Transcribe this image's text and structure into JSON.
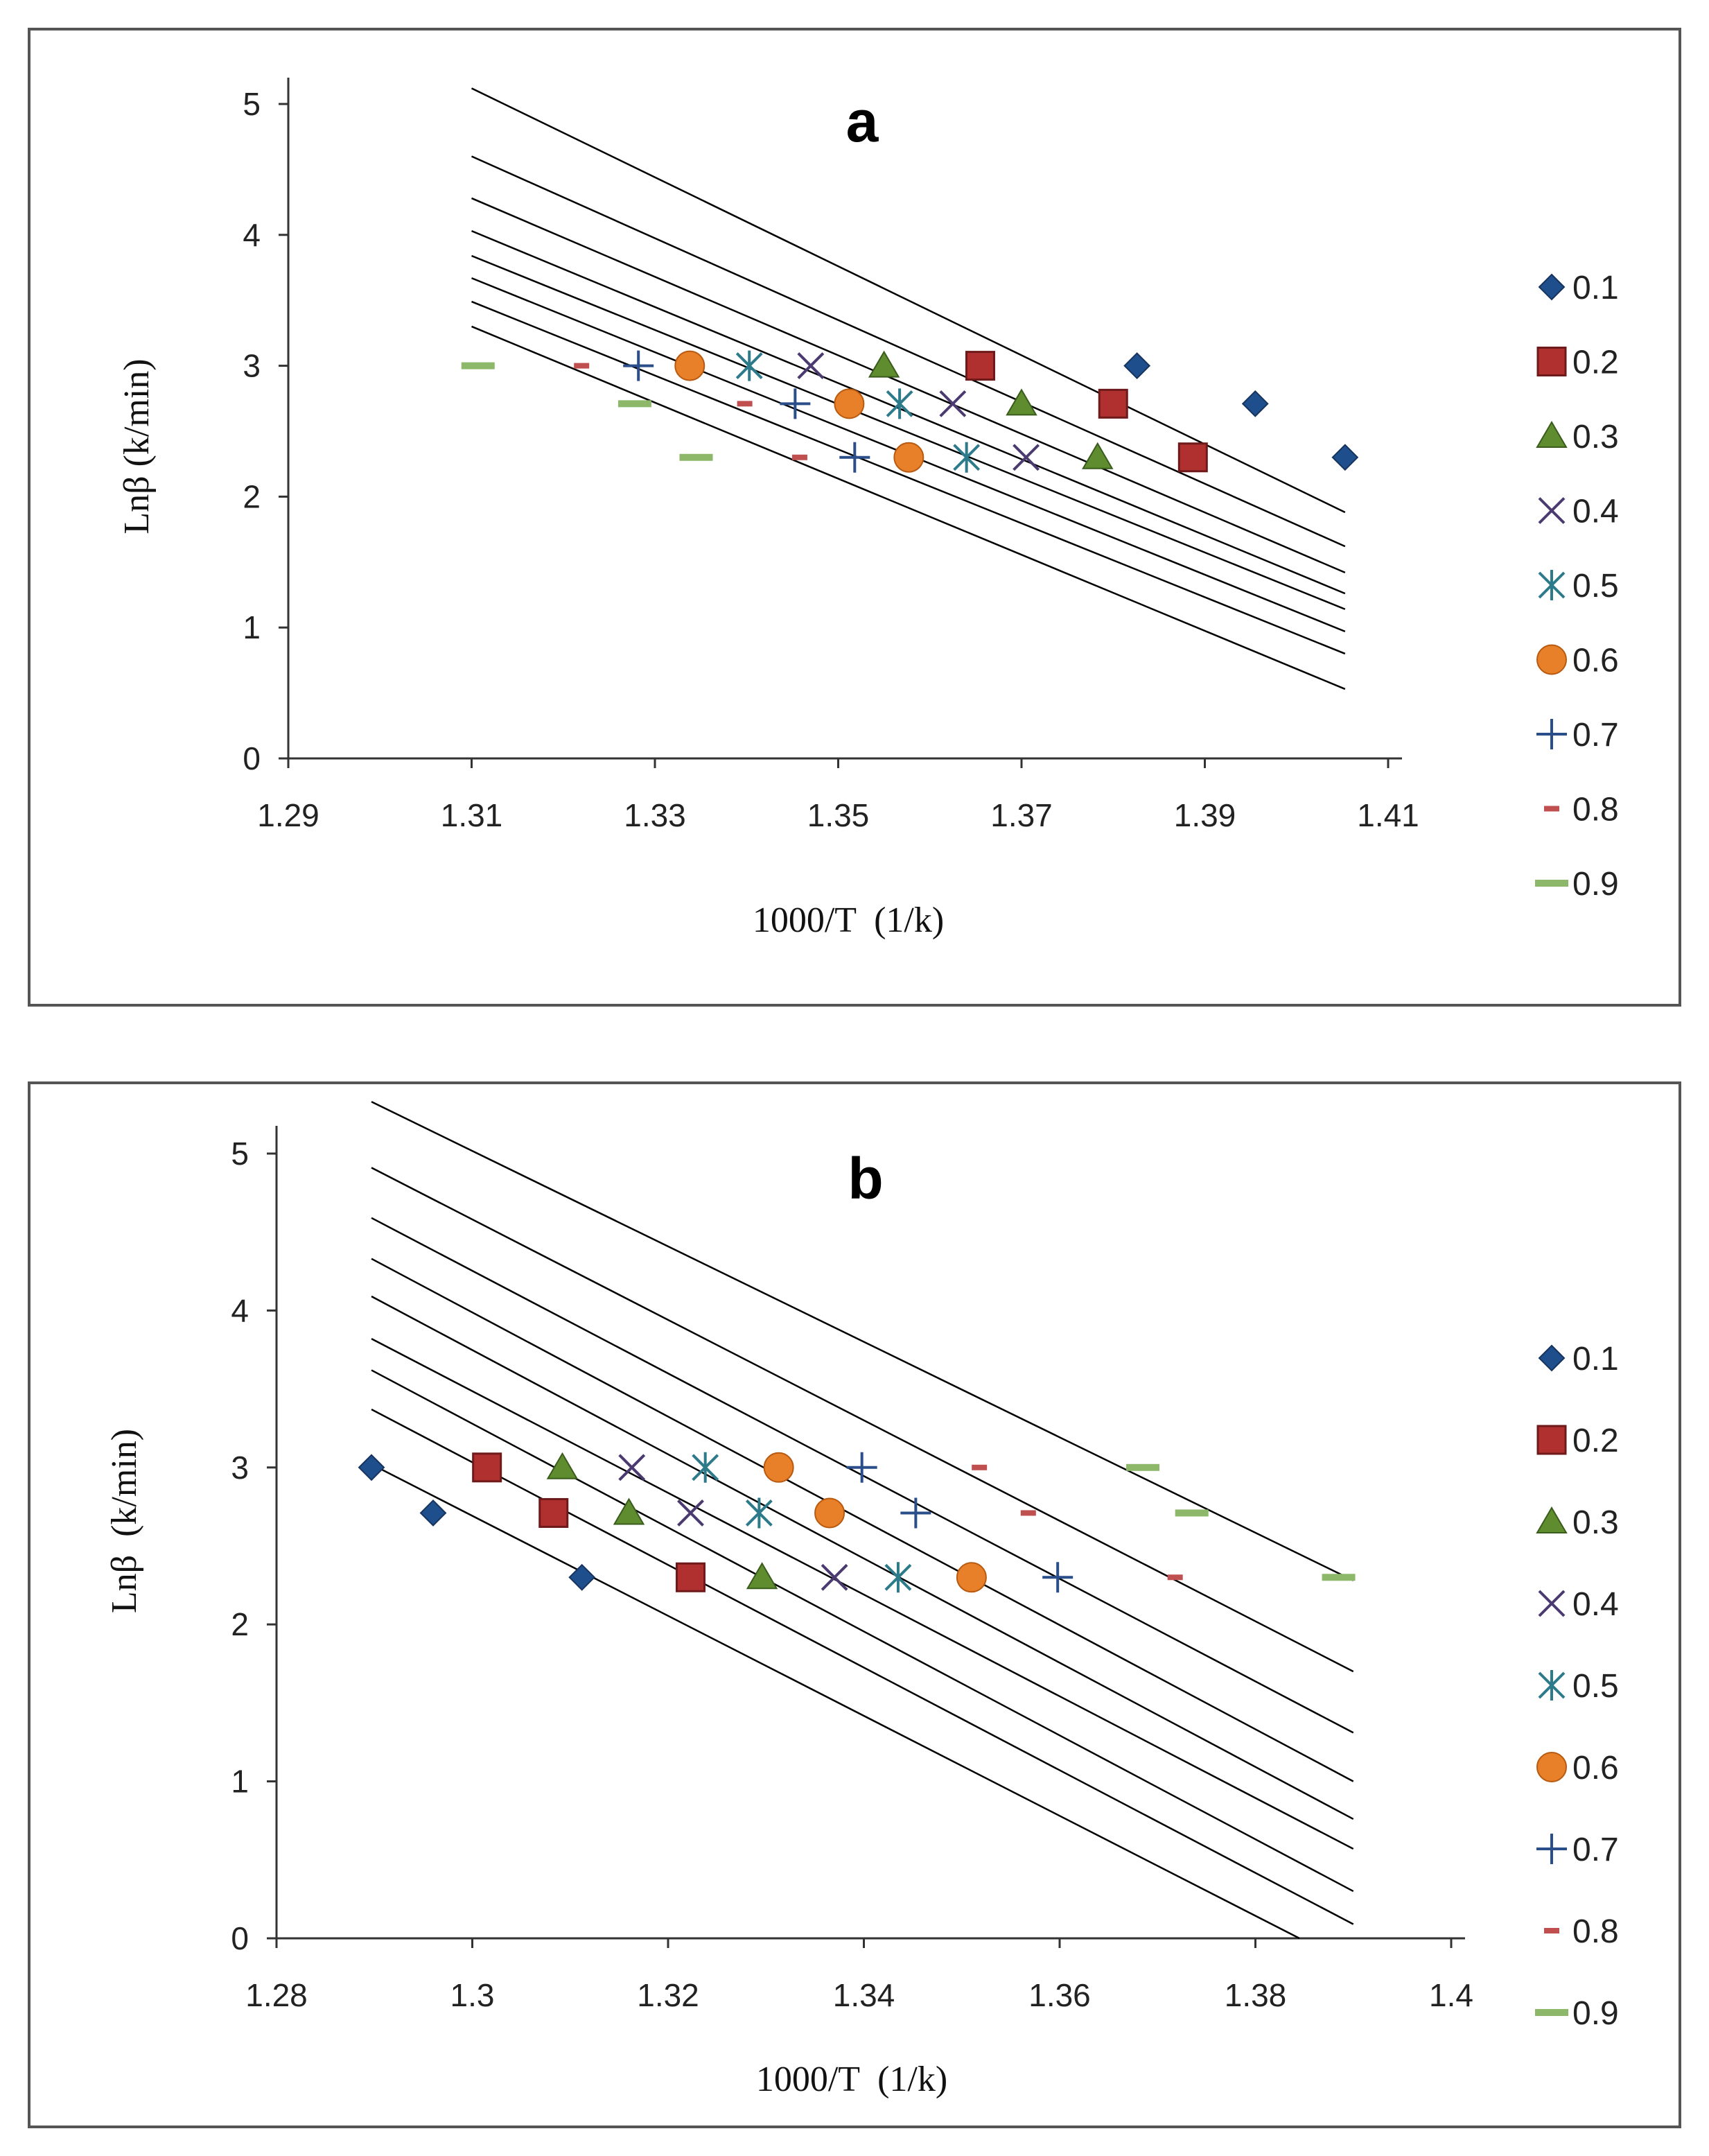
{
  "chart_data": [
    {
      "type": "scatter",
      "title": "a",
      "xlabel": "1000/T  (1/k)",
      "ylabel": "Lnβ (k/min)",
      "xlim": [
        1.29,
        1.41
      ],
      "ylim": [
        0,
        5
      ],
      "x_ticks": [
        "1.29",
        "1.31",
        "1.33",
        "1.35",
        "1.37",
        "1.39",
        "1.41"
      ],
      "y_ticks": [
        "0",
        "1",
        "2",
        "3",
        "4",
        "5"
      ],
      "legend_position": "right",
      "series": [
        {
          "name": "0.1",
          "marker": "diamond",
          "color": "#1F4E8C",
          "points": [
            [
              1.3826,
              3.0
            ],
            [
              1.3955,
              2.71
            ],
            [
              1.4053,
              2.3
            ]
          ],
          "fit": {
            "x0": 1.31,
            "y0": 5.12,
            "x1": 1.4053,
            "y1": 1.88
          }
        },
        {
          "name": "0.2",
          "marker": "square",
          "color": "#B03030",
          "points": [
            [
              1.3655,
              3.0
            ],
            [
              1.38,
              2.71
            ],
            [
              1.3887,
              2.3
            ]
          ],
          "fit": {
            "x0": 1.31,
            "y0": 4.6,
            "x1": 1.4053,
            "y1": 1.62
          }
        },
        {
          "name": "0.3",
          "marker": "triangle",
          "color": "#5E8C2E",
          "points": [
            [
              1.355,
              3.0
            ],
            [
              1.37,
              2.71
            ],
            [
              1.3783,
              2.3
            ]
          ],
          "fit": {
            "x0": 1.31,
            "y0": 4.28,
            "x1": 1.4053,
            "y1": 1.42
          }
        },
        {
          "name": "0.4",
          "marker": "x",
          "color": "#4A3A70",
          "points": [
            [
              1.347,
              3.0
            ],
            [
              1.3625,
              2.71
            ],
            [
              1.3705,
              2.3
            ]
          ],
          "fit": {
            "x0": 1.31,
            "y0": 4.03,
            "x1": 1.4053,
            "y1": 1.26
          }
        },
        {
          "name": "0.5",
          "marker": "star",
          "color": "#2C7A8A",
          "points": [
            [
              1.3403,
              3.0
            ],
            [
              1.3567,
              2.71
            ],
            [
              1.364,
              2.3
            ]
          ],
          "fit": {
            "x0": 1.31,
            "y0": 3.84,
            "x1": 1.4053,
            "y1": 1.14
          }
        },
        {
          "name": "0.6",
          "marker": "circle",
          "color": "#E8802A",
          "points": [
            [
              1.3338,
              3.0
            ],
            [
              1.3512,
              2.71
            ],
            [
              1.3577,
              2.3
            ]
          ],
          "fit": {
            "x0": 1.31,
            "y0": 3.67,
            "x1": 1.4053,
            "y1": 0.97
          }
        },
        {
          "name": "0.7",
          "marker": "plus",
          "color": "#2A4E8A",
          "points": [
            [
              1.3282,
              3.0
            ],
            [
              1.3453,
              2.71
            ],
            [
              1.3518,
              2.3
            ]
          ],
          "fit": {
            "x0": 1.31,
            "y0": 3.49,
            "x1": 1.4053,
            "y1": 0.8
          }
        },
        {
          "name": "0.8",
          "marker": "dash-small",
          "color": "#C05050",
          "points": [
            [
              1.322,
              3.0
            ],
            [
              1.3398,
              2.71
            ],
            [
              1.3458,
              2.3
            ]
          ],
          "fit": {
            "x0": 1.31,
            "y0": 3.3,
            "x1": 1.4053,
            "y1": 0.53
          }
        },
        {
          "name": "0.9",
          "marker": "dash-large",
          "color": "#8DB86A",
          "points": [
            [
              1.3107,
              3.0
            ],
            [
              1.3278,
              2.71
            ],
            [
              1.3345,
              2.3
            ]
          ],
          "fit": null
        }
      ]
    },
    {
      "type": "scatter",
      "title": "b",
      "xlabel": "1000/T  (1/k)",
      "ylabel": "Lnβ  (k/min)",
      "xlim": [
        1.28,
        1.4
      ],
      "ylim": [
        0,
        5
      ],
      "x_ticks": [
        "1.28",
        "1.3",
        "1.32",
        "1.34",
        "1.36",
        "1.38",
        "1.4"
      ],
      "y_ticks": [
        "0",
        "1",
        "2",
        "3",
        "4",
        "5"
      ],
      "legend_position": "right",
      "series": [
        {
          "name": "0.1",
          "marker": "diamond",
          "color": "#1F4E8C",
          "points": [
            [
              1.2897,
              3.0
            ],
            [
              1.296,
              2.71
            ],
            [
              1.3112,
              2.3
            ]
          ],
          "fit": {
            "x0": 1.2897,
            "y0": 3.02,
            "x1": 1.3845,
            "y1": 0.0
          }
        },
        {
          "name": "0.2",
          "marker": "square",
          "color": "#B03030",
          "points": [
            [
              1.3015,
              3.0
            ],
            [
              1.3083,
              2.71
            ],
            [
              1.3223,
              2.3
            ]
          ],
          "fit": {
            "x0": 1.2897,
            "y0": 3.37,
            "x1": 1.39,
            "y1": 0.09
          }
        },
        {
          "name": "0.3",
          "marker": "triangle",
          "color": "#5E8C2E",
          "points": [
            [
              1.3092,
              3.0
            ],
            [
              1.316,
              2.71
            ],
            [
              1.3296,
              2.3
            ]
          ],
          "fit": {
            "x0": 1.2897,
            "y0": 3.62,
            "x1": 1.39,
            "y1": 0.3
          }
        },
        {
          "name": "0.4",
          "marker": "x",
          "color": "#4A3A70",
          "points": [
            [
              1.3163,
              3.0
            ],
            [
              1.3223,
              2.71
            ],
            [
              1.337,
              2.3
            ]
          ],
          "fit": {
            "x0": 1.2897,
            "y0": 3.82,
            "x1": 1.39,
            "y1": 0.57
          }
        },
        {
          "name": "0.5",
          "marker": "star",
          "color": "#2C7A8A",
          "points": [
            [
              1.3238,
              3.0
            ],
            [
              1.3293,
              2.71
            ],
            [
              1.3435,
              2.3
            ]
          ],
          "fit": {
            "x0": 1.2897,
            "y0": 4.09,
            "x1": 1.39,
            "y1": 0.76
          }
        },
        {
          "name": "0.6",
          "marker": "circle",
          "color": "#E8802A",
          "points": [
            [
              1.3313,
              3.0
            ],
            [
              1.3365,
              2.71
            ],
            [
              1.351,
              2.3
            ]
          ],
          "fit": {
            "x0": 1.2897,
            "y0": 4.33,
            "x1": 1.39,
            "y1": 1.0
          }
        },
        {
          "name": "0.7",
          "marker": "plus",
          "color": "#2A4E8A",
          "points": [
            [
              1.3398,
              3.0
            ],
            [
              1.3453,
              2.71
            ],
            [
              1.3598,
              2.3
            ]
          ],
          "fit": {
            "x0": 1.2897,
            "y0": 4.59,
            "x1": 1.39,
            "y1": 1.31
          }
        },
        {
          "name": "0.8",
          "marker": "dash-small",
          "color": "#C05050",
          "points": [
            [
              1.3518,
              3.0
            ],
            [
              1.3568,
              2.71
            ],
            [
              1.3718,
              2.3
            ]
          ],
          "fit": {
            "x0": 1.2897,
            "y0": 4.91,
            "x1": 1.39,
            "y1": 1.7
          }
        },
        {
          "name": "0.9",
          "marker": "dash-large",
          "color": "#8DB86A",
          "points": [
            [
              1.3685,
              3.0
            ],
            [
              1.3735,
              2.71
            ],
            [
              1.3885,
              2.3
            ]
          ],
          "fit": {
            "x0": 1.2897,
            "y0": 5.33,
            "x1": 1.39,
            "y1": 2.28
          }
        }
      ]
    }
  ]
}
